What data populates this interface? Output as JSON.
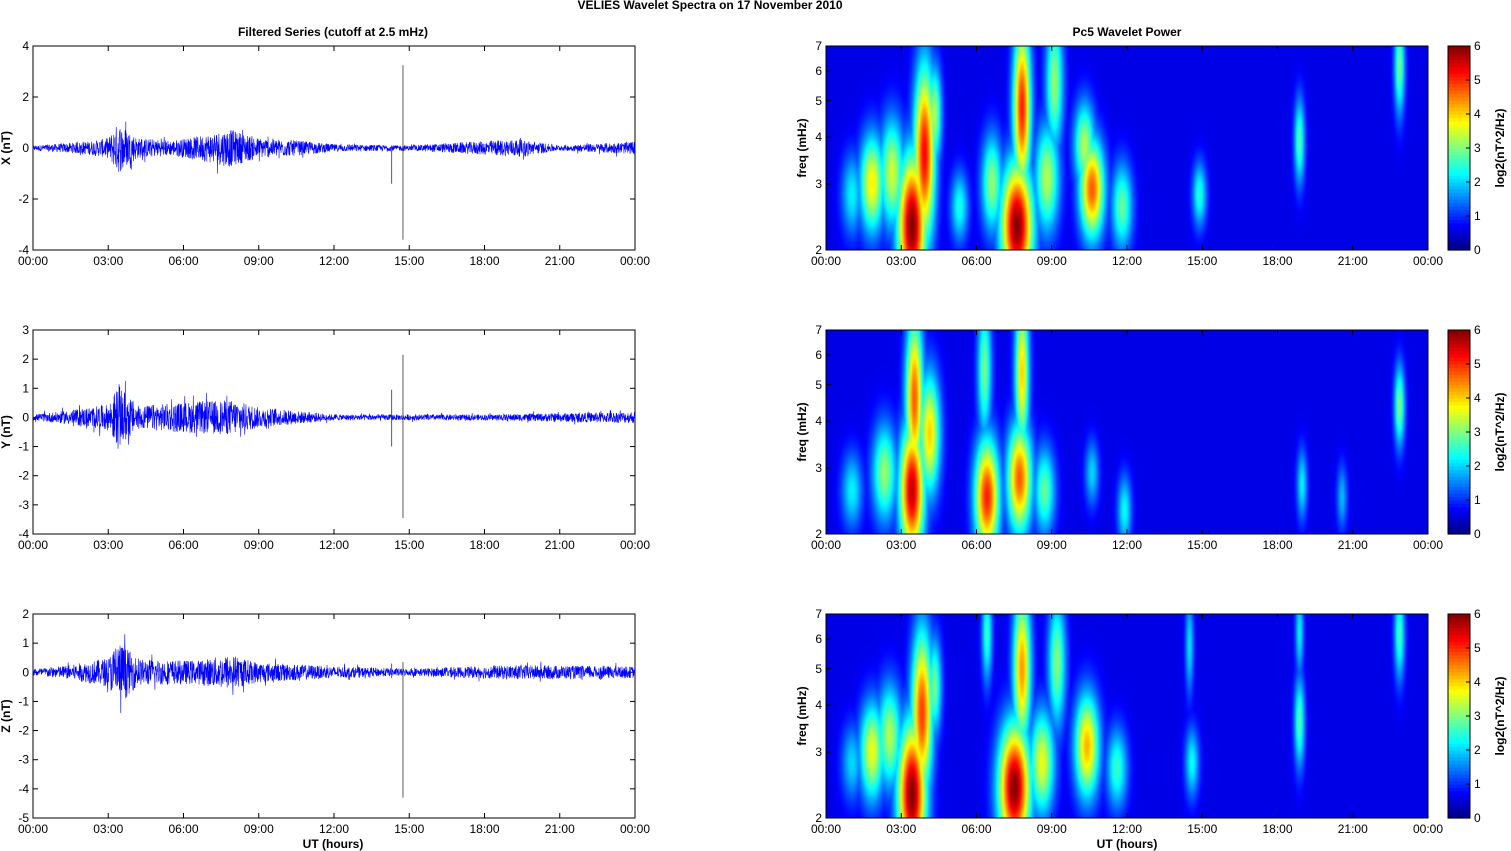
{
  "figure": {
    "title": "VELIES Wavelet Spectra on 17 November  2010",
    "left_title": "Filtered Series (cutoff at 2.5 mHz)",
    "right_title": "Pc5 Wavelet Power",
    "xlabel": "UT (hours)"
  },
  "chart_data": [
    {
      "type": "line",
      "name": "X",
      "ylabel": "X (nT)",
      "xlim": [
        0,
        24
      ],
      "ylim": [
        -4,
        4
      ],
      "yticks": [
        -4,
        -2,
        0,
        2,
        4
      ],
      "xticks": [
        "00:00",
        "03:00",
        "06:00",
        "09:00",
        "12:00",
        "15:00",
        "18:00",
        "21:00",
        "00:00"
      ],
      "series_color": "#0000ff",
      "envelope": [
        {
          "x": 0.0,
          "a": 0.1
        },
        {
          "x": 1.5,
          "a": 0.2
        },
        {
          "x": 2.5,
          "a": 0.3
        },
        {
          "x": 3.0,
          "a": 0.4
        },
        {
          "x": 3.4,
          "a": 1.0
        },
        {
          "x": 4.2,
          "a": 0.4
        },
        {
          "x": 5.5,
          "a": 0.3
        },
        {
          "x": 6.5,
          "a": 0.45
        },
        {
          "x": 7.8,
          "a": 0.75
        },
        {
          "x": 9.0,
          "a": 0.4
        },
        {
          "x": 10.5,
          "a": 0.3
        },
        {
          "x": 12.0,
          "a": 0.15
        },
        {
          "x": 15.0,
          "a": 0.1
        },
        {
          "x": 19.3,
          "a": 0.35
        },
        {
          "x": 21.0,
          "a": 0.1
        },
        {
          "x": 24.0,
          "a": 0.25
        }
      ],
      "spikes": [
        {
          "x": 14.3,
          "y0": -1.4,
          "y1": 0.1
        },
        {
          "x": 14.75,
          "y0": -3.6,
          "y1": 3.25
        }
      ]
    },
    {
      "type": "line",
      "name": "Y",
      "ylabel": "Y (nT)",
      "xlim": [
        0,
        24
      ],
      "ylim": [
        -4,
        3
      ],
      "yticks": [
        -4,
        -3,
        -2,
        -1,
        0,
        1,
        2,
        3
      ],
      "xticks": [
        "00:00",
        "03:00",
        "06:00",
        "09:00",
        "12:00",
        "15:00",
        "18:00",
        "21:00",
        "00:00"
      ],
      "series_color": "#0000ff",
      "envelope": [
        {
          "x": 0.0,
          "a": 0.1
        },
        {
          "x": 1.5,
          "a": 0.25
        },
        {
          "x": 3.0,
          "a": 0.45
        },
        {
          "x": 3.4,
          "a": 1.1
        },
        {
          "x": 4.2,
          "a": 0.4
        },
        {
          "x": 6.5,
          "a": 0.55
        },
        {
          "x": 8.0,
          "a": 0.6
        },
        {
          "x": 9.0,
          "a": 0.35
        },
        {
          "x": 12.0,
          "a": 0.1
        },
        {
          "x": 15.0,
          "a": 0.1
        },
        {
          "x": 18.0,
          "a": 0.1
        },
        {
          "x": 24.0,
          "a": 0.2
        }
      ],
      "spikes": [
        {
          "x": 14.3,
          "y0": -1.0,
          "y1": 0.95
        },
        {
          "x": 14.75,
          "y0": -3.45,
          "y1": 2.15
        }
      ]
    },
    {
      "type": "line",
      "name": "Z",
      "ylabel": "Z (nT)",
      "xlim": [
        0,
        24
      ],
      "ylim": [
        -5,
        2
      ],
      "yticks": [
        -5,
        -4,
        -3,
        -2,
        -1,
        0,
        1,
        2
      ],
      "xticks": [
        "00:00",
        "03:00",
        "06:00",
        "09:00",
        "12:00",
        "15:00",
        "18:00",
        "21:00",
        "00:00"
      ],
      "series_color": "#0000ff",
      "envelope": [
        {
          "x": 0.0,
          "a": 0.12
        },
        {
          "x": 1.5,
          "a": 0.25
        },
        {
          "x": 3.0,
          "a": 0.5
        },
        {
          "x": 3.4,
          "a": 1.1
        },
        {
          "x": 4.2,
          "a": 0.45
        },
        {
          "x": 6.5,
          "a": 0.4
        },
        {
          "x": 7.8,
          "a": 0.6
        },
        {
          "x": 9.0,
          "a": 0.35
        },
        {
          "x": 12.0,
          "a": 0.2
        },
        {
          "x": 15.0,
          "a": 0.12
        },
        {
          "x": 19.3,
          "a": 0.25
        },
        {
          "x": 24.0,
          "a": 0.2
        }
      ],
      "spikes": [
        {
          "x": 14.3,
          "y0": -0.2,
          "y1": 0.3
        },
        {
          "x": 14.75,
          "y0": -4.3,
          "y1": 0.35
        }
      ]
    },
    {
      "type": "heatmap",
      "name": "X",
      "ylabel": "freq (mHz)",
      "yscale": "log",
      "xlim": [
        0,
        24
      ],
      "ylim": [
        2,
        7
      ],
      "yticks": [
        2,
        3,
        4,
        5,
        6,
        7
      ],
      "xticks": [
        "00:00",
        "03:00",
        "06:00",
        "09:00",
        "12:00",
        "15:00",
        "18:00",
        "21:00",
        "00:00"
      ],
      "colorbar": {
        "label": "log2(nT^2/Hz)",
        "min": 0,
        "max": 6,
        "ticks": [
          0,
          1,
          2,
          3,
          4,
          5,
          6
        ]
      },
      "blobs": [
        {
          "x": 3.4,
          "f": 2.3,
          "p": 6.0,
          "w": 0.4,
          "h": 2.6
        },
        {
          "x": 3.9,
          "f": 3.6,
          "p": 5.2,
          "w": 0.3,
          "h": 3.2
        },
        {
          "x": 1.8,
          "f": 3.0,
          "p": 3.6,
          "w": 0.35,
          "h": 1.8
        },
        {
          "x": 2.6,
          "f": 3.2,
          "p": 3.2,
          "w": 0.35,
          "h": 2.0
        },
        {
          "x": 4.3,
          "f": 4.6,
          "p": 3.0,
          "w": 0.2,
          "h": 1.8
        },
        {
          "x": 1.0,
          "f": 2.8,
          "p": 1.8,
          "w": 0.3,
          "h": 1.5
        },
        {
          "x": 5.3,
          "f": 2.6,
          "p": 2.0,
          "w": 0.25,
          "h": 1.3
        },
        {
          "x": 7.6,
          "f": 2.3,
          "p": 6.0,
          "w": 0.45,
          "h": 2.3
        },
        {
          "x": 7.8,
          "f": 4.8,
          "p": 5.0,
          "w": 0.25,
          "h": 3.0
        },
        {
          "x": 6.6,
          "f": 3.0,
          "p": 2.8,
          "w": 0.3,
          "h": 1.8
        },
        {
          "x": 8.8,
          "f": 3.1,
          "p": 3.0,
          "w": 0.35,
          "h": 2.0
        },
        {
          "x": 9.1,
          "f": 5.6,
          "p": 2.8,
          "w": 0.25,
          "h": 2.5
        },
        {
          "x": 10.6,
          "f": 2.9,
          "p": 4.6,
          "w": 0.35,
          "h": 1.8
        },
        {
          "x": 10.3,
          "f": 3.8,
          "p": 3.0,
          "w": 0.3,
          "h": 1.6
        },
        {
          "x": 11.8,
          "f": 2.6,
          "p": 2.5,
          "w": 0.3,
          "h": 1.6
        },
        {
          "x": 14.9,
          "f": 2.8,
          "p": 2.1,
          "w": 0.2,
          "h": 1.2
        },
        {
          "x": 18.9,
          "f": 3.9,
          "p": 2.4,
          "w": 0.15,
          "h": 1.6
        },
        {
          "x": 22.9,
          "f": 6.2,
          "p": 2.6,
          "w": 0.15,
          "h": 1.8
        }
      ]
    },
    {
      "type": "heatmap",
      "name": "Y",
      "ylabel": "freq (mHz)",
      "yscale": "log",
      "xlim": [
        0,
        24
      ],
      "ylim": [
        2,
        7
      ],
      "yticks": [
        2,
        3,
        4,
        5,
        6,
        7
      ],
      "xticks": [
        "00:00",
        "03:00",
        "06:00",
        "09:00",
        "12:00",
        "15:00",
        "18:00",
        "21:00",
        "00:00"
      ],
      "colorbar": {
        "label": "log2(nT^2/Hz)",
        "min": 0,
        "max": 6,
        "ticks": [
          0,
          1,
          2,
          3,
          4,
          5,
          6
        ]
      },
      "blobs": [
        {
          "x": 3.4,
          "f": 2.6,
          "p": 5.6,
          "w": 0.35,
          "h": 2.4
        },
        {
          "x": 3.5,
          "f": 4.6,
          "p": 4.6,
          "w": 0.25,
          "h": 3.0
        },
        {
          "x": 4.1,
          "f": 3.7,
          "p": 3.8,
          "w": 0.3,
          "h": 2.2
        },
        {
          "x": 2.3,
          "f": 2.9,
          "p": 2.8,
          "w": 0.35,
          "h": 1.8
        },
        {
          "x": 1.0,
          "f": 2.6,
          "p": 1.8,
          "w": 0.3,
          "h": 1.4
        },
        {
          "x": 6.4,
          "f": 2.5,
          "p": 5.0,
          "w": 0.35,
          "h": 2.1
        },
        {
          "x": 7.7,
          "f": 2.8,
          "p": 4.6,
          "w": 0.35,
          "h": 2.0
        },
        {
          "x": 7.8,
          "f": 5.4,
          "p": 3.8,
          "w": 0.2,
          "h": 2.8
        },
        {
          "x": 6.3,
          "f": 5.5,
          "p": 2.6,
          "w": 0.2,
          "h": 2.5
        },
        {
          "x": 8.7,
          "f": 2.6,
          "p": 2.5,
          "w": 0.3,
          "h": 1.6
        },
        {
          "x": 10.6,
          "f": 2.9,
          "p": 1.6,
          "w": 0.2,
          "h": 1.2
        },
        {
          "x": 11.9,
          "f": 2.3,
          "p": 1.9,
          "w": 0.2,
          "h": 1.3
        },
        {
          "x": 19.0,
          "f": 2.7,
          "p": 1.8,
          "w": 0.15,
          "h": 1.3
        },
        {
          "x": 20.6,
          "f": 2.5,
          "p": 1.4,
          "w": 0.15,
          "h": 1.2
        },
        {
          "x": 22.9,
          "f": 4.4,
          "p": 2.7,
          "w": 0.15,
          "h": 1.5
        }
      ]
    },
    {
      "type": "heatmap",
      "name": "Z",
      "ylabel": "freq (mHz)",
      "yscale": "log",
      "xlim": [
        0,
        24
      ],
      "ylim": [
        2,
        7
      ],
      "yticks": [
        2,
        3,
        4,
        5,
        6,
        7
      ],
      "xticks": [
        "00:00",
        "03:00",
        "06:00",
        "09:00",
        "12:00",
        "15:00",
        "18:00",
        "21:00",
        "00:00"
      ],
      "colorbar": {
        "label": "log2(nT^2/Hz)",
        "min": 0,
        "max": 6,
        "ticks": [
          0,
          1,
          2,
          3,
          4,
          5,
          6
        ]
      },
      "blobs": [
        {
          "x": 3.4,
          "f": 2.3,
          "p": 6.0,
          "w": 0.4,
          "h": 2.6
        },
        {
          "x": 3.8,
          "f": 3.8,
          "p": 4.8,
          "w": 0.3,
          "h": 3.0
        },
        {
          "x": 1.8,
          "f": 3.0,
          "p": 3.4,
          "w": 0.35,
          "h": 1.8
        },
        {
          "x": 2.5,
          "f": 3.3,
          "p": 3.0,
          "w": 0.35,
          "h": 1.9
        },
        {
          "x": 4.3,
          "f": 4.5,
          "p": 2.6,
          "w": 0.2,
          "h": 1.8
        },
        {
          "x": 1.0,
          "f": 2.8,
          "p": 1.6,
          "w": 0.3,
          "h": 1.4
        },
        {
          "x": 7.5,
          "f": 2.4,
          "p": 6.0,
          "w": 0.45,
          "h": 2.3
        },
        {
          "x": 7.8,
          "f": 5.0,
          "p": 4.2,
          "w": 0.25,
          "h": 2.8
        },
        {
          "x": 6.4,
          "f": 6.2,
          "p": 2.2,
          "w": 0.15,
          "h": 1.8
        },
        {
          "x": 8.6,
          "f": 2.8,
          "p": 3.4,
          "w": 0.35,
          "h": 1.9
        },
        {
          "x": 9.2,
          "f": 5.2,
          "p": 2.7,
          "w": 0.25,
          "h": 2.4
        },
        {
          "x": 10.4,
          "f": 3.1,
          "p": 4.0,
          "w": 0.35,
          "h": 1.9
        },
        {
          "x": 11.6,
          "f": 2.7,
          "p": 2.2,
          "w": 0.3,
          "h": 1.5
        },
        {
          "x": 14.6,
          "f": 2.8,
          "p": 1.9,
          "w": 0.2,
          "h": 1.3
        },
        {
          "x": 14.5,
          "f": 5.8,
          "p": 1.7,
          "w": 0.12,
          "h": 1.8
        },
        {
          "x": 18.9,
          "f": 3.6,
          "p": 2.4,
          "w": 0.15,
          "h": 1.7
        },
        {
          "x": 18.9,
          "f": 6.3,
          "p": 1.8,
          "w": 0.12,
          "h": 1.6
        },
        {
          "x": 22.9,
          "f": 6.2,
          "p": 2.3,
          "w": 0.15,
          "h": 1.7
        }
      ]
    }
  ]
}
